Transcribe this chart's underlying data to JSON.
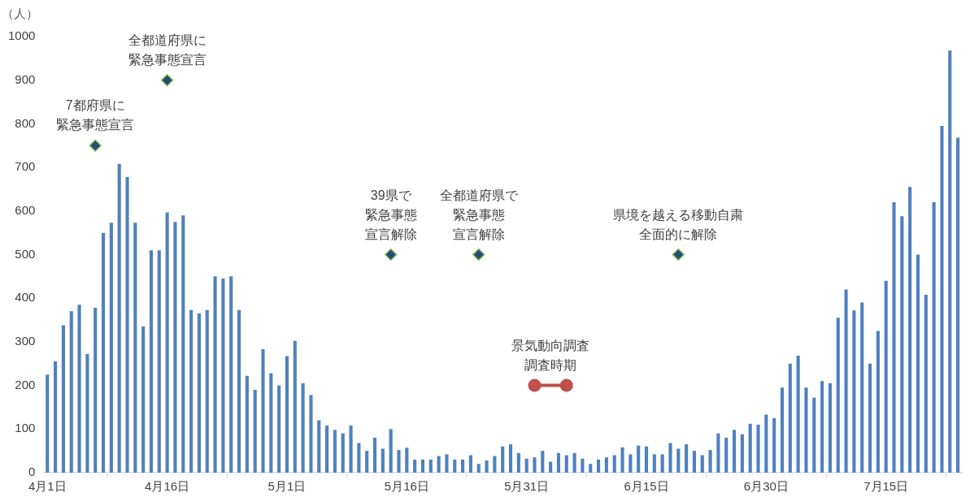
{
  "chart_data": {
    "type": "bar",
    "ylabel": "（人）",
    "x": [
      "--04-01",
      "--04-02",
      "--04-03",
      "--04-04",
      "--04-05",
      "--04-06",
      "--04-07",
      "--04-08",
      "--04-09",
      "--04-10",
      "--04-11",
      "--04-12",
      "--04-13",
      "--04-14",
      "--04-15",
      "--04-16",
      "--04-17",
      "--04-18",
      "--04-19",
      "--04-20",
      "--04-21",
      "--04-22",
      "--04-23",
      "--04-24",
      "--04-25",
      "--04-26",
      "--04-27",
      "--04-28",
      "--04-29",
      "--04-30",
      "--05-01",
      "--05-02",
      "--05-03",
      "--05-04",
      "--05-05",
      "--05-06",
      "--05-07",
      "--05-08",
      "--05-09",
      "--05-10",
      "--05-11",
      "--05-12",
      "--05-13",
      "--05-14",
      "--05-15",
      "--05-16",
      "--05-17",
      "--05-18",
      "--05-19",
      "--05-20",
      "--05-21",
      "--05-22",
      "--05-23",
      "--05-24",
      "--05-25",
      "--05-26",
      "--05-27",
      "--05-28",
      "--05-29",
      "--05-30",
      "--05-31",
      "--06-01",
      "--06-02",
      "--06-03",
      "--06-04",
      "--06-05",
      "--06-06",
      "--06-07",
      "--06-08",
      "--06-09",
      "--06-10",
      "--06-11",
      "--06-12",
      "--06-13",
      "--06-14",
      "--06-15",
      "--06-16",
      "--06-17",
      "--06-18",
      "--06-19",
      "--06-20",
      "--06-21",
      "--06-22",
      "--06-23",
      "--06-24",
      "--06-25",
      "--06-26",
      "--06-27",
      "--06-28",
      "--06-29",
      "--06-30",
      "--07-01",
      "--07-02",
      "--07-03",
      "--07-04",
      "--07-05",
      "--07-06",
      "--07-07",
      "--07-08",
      "--07-09",
      "--07-10",
      "--07-11",
      "--07-12",
      "--07-13",
      "--07-14",
      "--07-15",
      "--07-16",
      "--07-17",
      "--07-18",
      "--07-19",
      "--07-20",
      "--07-21",
      "--07-22",
      "--07-23",
      "--07-24"
    ],
    "series": [
      {
        "color": "#4f81bd",
        "values": [
          225,
          255,
          338,
          370,
          385,
          272,
          378,
          550,
          573,
          708,
          678,
          573,
          335,
          510,
          510,
          597,
          575,
          590,
          373,
          365,
          373,
          450,
          445,
          450,
          373,
          222,
          190,
          283,
          228,
          200,
          267,
          302,
          205,
          178,
          120,
          108,
          98,
          90,
          108,
          68,
          50,
          80,
          55,
          100,
          52,
          57,
          30,
          30,
          30,
          38,
          42,
          30,
          30,
          40,
          20,
          28,
          38,
          60,
          65,
          45,
          32,
          35,
          50,
          25,
          45,
          40,
          45,
          32,
          20,
          30,
          35,
          40,
          58,
          42,
          62,
          60,
          42,
          42,
          68,
          55,
          65,
          50,
          40,
          52,
          90,
          80,
          98,
          88,
          112,
          110,
          133,
          125,
          195,
          250,
          268,
          195,
          172,
          210,
          205,
          355,
          420,
          372,
          390,
          250,
          325,
          440,
          620,
          588,
          655,
          500,
          408,
          620,
          795,
          968,
          768
        ]
      },
      {
        "type": "scatter",
        "color": "#1f4e79",
        "marker": "diamond",
        "x": [
          "--04-07",
          "--04-16",
          "--05-14",
          "--05-25",
          "--06-19"
        ],
        "values": [
          750,
          900,
          500,
          500,
          500
        ]
      },
      {
        "type": "line",
        "color": "#c0504d",
        "marker": "circle",
        "x": [
          "--06-01",
          "--06-05"
        ],
        "values": [
          200,
          200
        ]
      }
    ],
    "xlim": [
      "--03-31T12:00",
      "--07-24T12:00"
    ],
    "xticks": [
      {
        "value": "--04-01",
        "label": "4月1日"
      },
      {
        "value": "--04-16",
        "label": "4月16日"
      },
      {
        "value": "--05-01",
        "label": "5月1日"
      },
      {
        "value": "--05-16",
        "label": "5月16日"
      },
      {
        "value": "--05-31",
        "label": "5月31日"
      },
      {
        "value": "--06-15",
        "label": "6月15日"
      },
      {
        "value": "--06-30",
        "label": "6月30日"
      },
      {
        "value": "--07-15",
        "label": "7月15日"
      }
    ],
    "ylim": [
      0,
      1000
    ],
    "yticks": [
      0,
      100,
      200,
      300,
      400,
      500,
      600,
      700,
      800,
      900,
      1000
    ],
    "grid": false,
    "legend": false,
    "annotations": [
      {
        "text": "7都府県に緊急事態宣言",
        "x": "--04-07",
        "y": 750
      },
      {
        "text": "全都道府県に緊急事態宣言",
        "x": "--04-16",
        "y": 900
      },
      {
        "text": "39県で緊急事態宣言解除",
        "x": "--05-14",
        "y": 500
      },
      {
        "text": "全都道府県で緊急事態宣言解除",
        "x": "--05-25",
        "y": 500
      },
      {
        "text": "景気動向調査調査時期",
        "x": "--06-03",
        "y": 200
      },
      {
        "text": "県境を越える移動自粛全面的に解除",
        "x": "--06-19",
        "y": 500
      }
    ]
  }
}
